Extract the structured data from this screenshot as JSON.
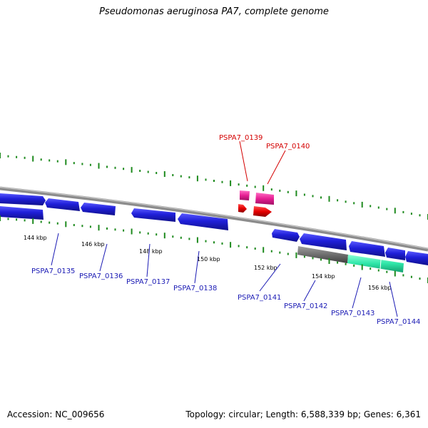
{
  "title": "Pseudomonas aeruginosa PA7, complete genome",
  "footer": {
    "accession": "Accession: NC_009656",
    "topology": "Topology: circular; Length: 6,588,339 bp; Genes: 6,361"
  },
  "colors": {
    "background": "#ffffff",
    "genome_strand": "#8c8c8c",
    "forward_gene": "#e61f93",
    "forward_gene_red": "#e60000",
    "reverse_gene": "#1f1fd9",
    "feature_dark": "#6e6e6e",
    "feature_teal": "#2ee6a8",
    "tick": "#1e8a1e",
    "gene_label_blue": "#1a1ab4",
    "gene_label_red": "#d40000"
  },
  "scale_labels": [
    "144 kbp",
    "146 kbp",
    "148 kbp",
    "150 kbp",
    "152 kbp",
    "154 kbp",
    "156 kbp"
  ],
  "genes": [
    {
      "id": "PSPA7_0135",
      "color": "blue"
    },
    {
      "id": "PSPA7_0136",
      "color": "blue"
    },
    {
      "id": "PSPA7_0137",
      "color": "blue"
    },
    {
      "id": "PSPA7_0138",
      "color": "blue"
    },
    {
      "id": "PSPA7_0139",
      "color": "red"
    },
    {
      "id": "PSPA7_0140",
      "color": "red"
    },
    {
      "id": "PSPA7_0141",
      "color": "blue"
    },
    {
      "id": "PSPA7_0142",
      "color": "blue"
    },
    {
      "id": "PSPA7_0143",
      "color": "blue"
    },
    {
      "id": "PSPA7_0144",
      "color": "blue"
    }
  ]
}
